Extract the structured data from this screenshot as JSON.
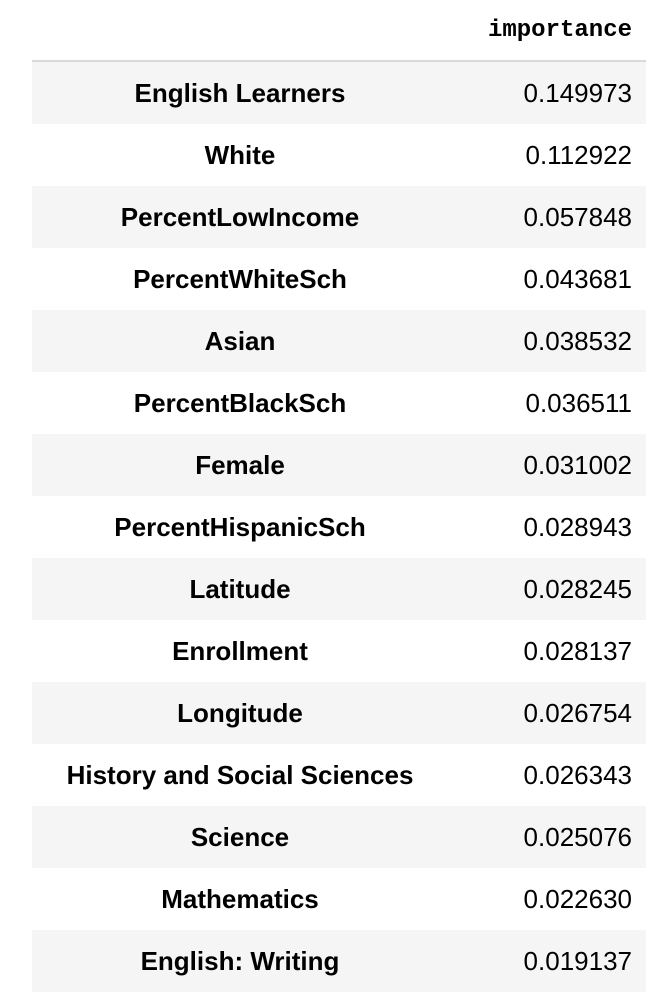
{
  "table": {
    "header": "importance",
    "rows": [
      {
        "label": "English Learners",
        "value": "0.149973"
      },
      {
        "label": "White",
        "value": "0.112922"
      },
      {
        "label": "PercentLowIncome",
        "value": "0.057848"
      },
      {
        "label": "PercentWhiteSch",
        "value": "0.043681"
      },
      {
        "label": "Asian",
        "value": "0.038532"
      },
      {
        "label": "PercentBlackSch",
        "value": "0.036511"
      },
      {
        "label": "Female",
        "value": "0.031002"
      },
      {
        "label": "PercentHispanicSch",
        "value": "0.028943"
      },
      {
        "label": "Latitude",
        "value": "0.028245"
      },
      {
        "label": "Enrollment",
        "value": "0.028137"
      },
      {
        "label": "Longitude",
        "value": "0.026754"
      },
      {
        "label": "History and Social Sciences",
        "value": "0.026343"
      },
      {
        "label": "Science",
        "value": "0.025076"
      },
      {
        "label": "Mathematics",
        "value": "0.022630"
      },
      {
        "label": "English: Writing",
        "value": "0.019137"
      }
    ]
  }
}
